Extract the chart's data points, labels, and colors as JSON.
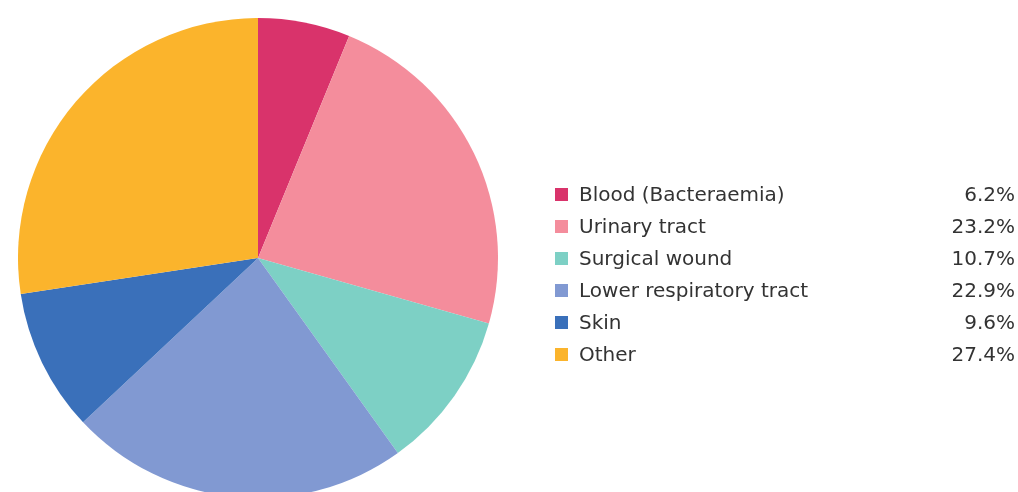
{
  "chart_data": {
    "type": "pie",
    "categories": [
      "Blood (Bacteraemia)",
      "Urinary tract",
      "Surgical wound",
      "Lower respiratory tract",
      "Skin",
      "Other"
    ],
    "values": [
      6.2,
      23.2,
      10.7,
      22.9,
      9.6,
      27.4
    ],
    "value_labels": [
      "6.2%",
      "23.2%",
      "10.7%",
      "22.9%",
      "9.6%",
      "27.4%"
    ],
    "colors": [
      "#d9336b",
      "#f48d9c",
      "#7dd0c5",
      "#8199d2",
      "#3a70ba",
      "#fbb42c"
    ],
    "legend": "right"
  }
}
